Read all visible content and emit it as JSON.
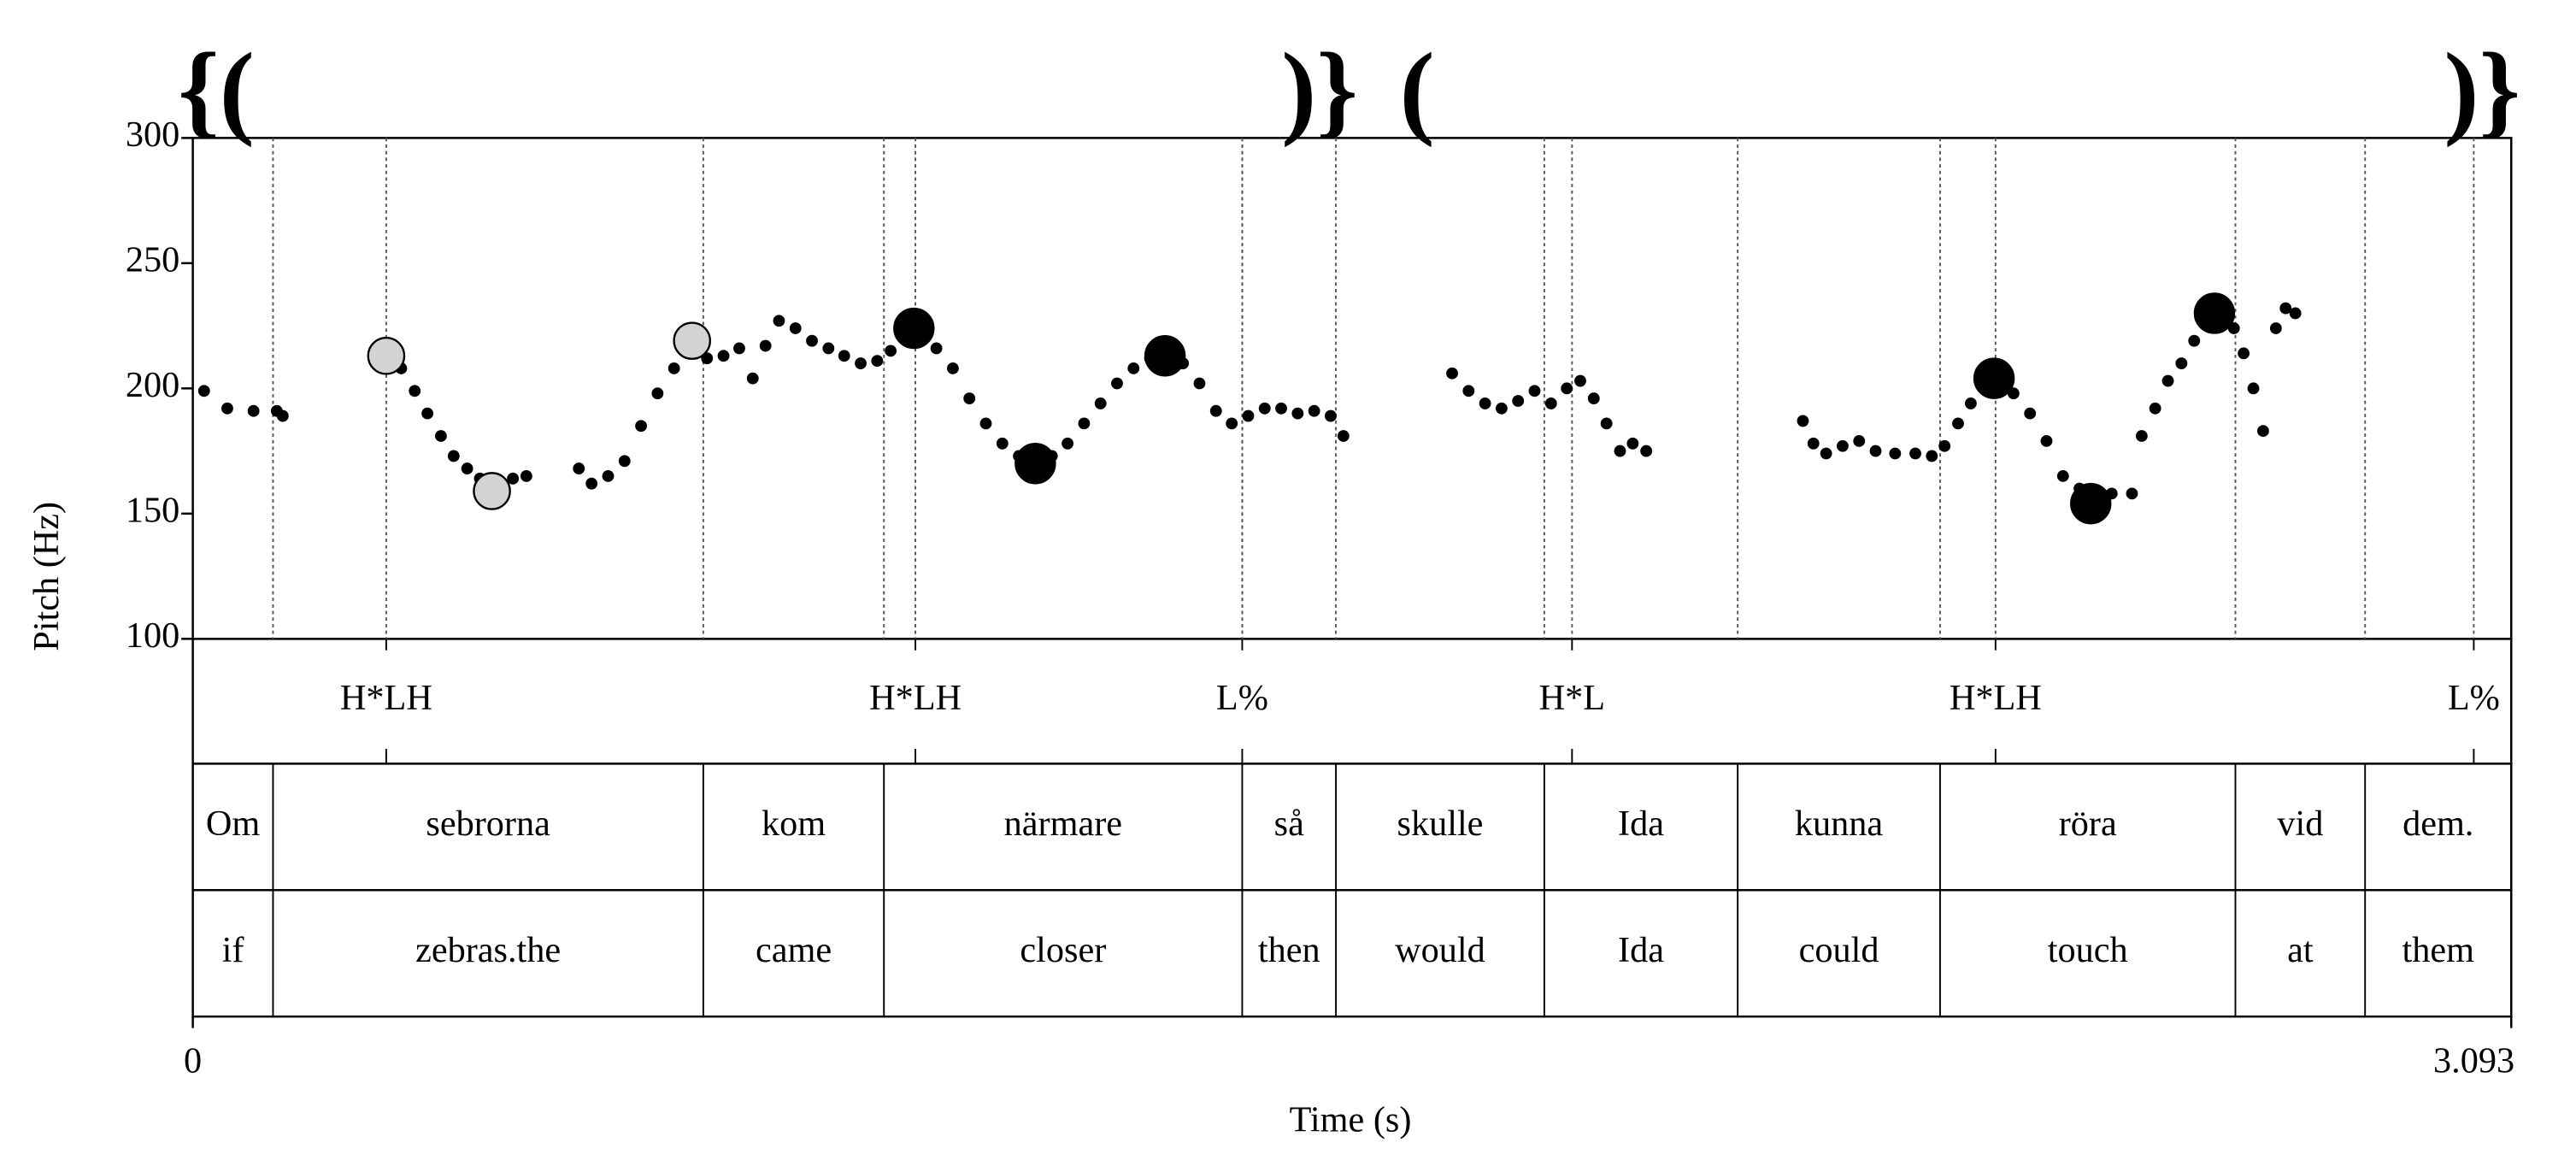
{
  "chart_data": {
    "type": "scatter",
    "x_label": "Time (s)",
    "y_label": "Pitch (Hz)",
    "xlim": [
      0,
      3.093
    ],
    "xticks": [
      0,
      3.093
    ],
    "ylim": [
      100,
      300
    ],
    "yticks": [
      100,
      150,
      200,
      250,
      300
    ],
    "brackets": [
      "{(",
      ")}",
      "(",
      ")}"
    ],
    "series": [
      {
        "color": "#000000",
        "marker_size": 3.6,
        "x": [
          0.015,
          0.046,
          0.081,
          0.112,
          0.12,
          0.278,
          0.296,
          0.313,
          0.331,
          0.348,
          0.366,
          0.383,
          0.401,
          0.427,
          0.445,
          0.515,
          0.532,
          0.554,
          0.576,
          0.598,
          0.62,
          0.642,
          0.664,
          0.686,
          0.708,
          0.729,
          0.747,
          0.764,
          0.782,
          0.804,
          0.826,
          0.848,
          0.869,
          0.891,
          0.913,
          0.931,
          0.948,
          0.97,
          0.992,
          1.014,
          1.036,
          1.058,
          1.08,
          1.102,
          1.124,
          1.146,
          1.167,
          1.189,
          1.211,
          1.233,
          1.255,
          1.277,
          1.299,
          1.321,
          1.343,
          1.365,
          1.386,
          1.408,
          1.43,
          1.452,
          1.474,
          1.496,
          1.518,
          1.535,
          1.68,
          1.702,
          1.724,
          1.746,
          1.768,
          1.79,
          1.812,
          1.833,
          1.851,
          1.869,
          1.886,
          1.904,
          1.921,
          1.939,
          2.148,
          2.162,
          2.179,
          2.201,
          2.223,
          2.245,
          2.271,
          2.298,
          2.32,
          2.337,
          2.355,
          2.372,
          2.39,
          2.407,
          2.429,
          2.451,
          2.473,
          2.495,
          2.517,
          2.539,
          2.56,
          2.587,
          2.6,
          2.618,
          2.635,
          2.653,
          2.67,
          2.688,
          2.705,
          2.723,
          2.736,
          2.749,
          2.762,
          2.779,
          2.792,
          2.805
        ],
        "values": [
          199,
          192,
          191,
          191,
          189,
          208,
          199,
          190,
          181,
          173,
          168,
          164,
          161,
          164,
          165,
          168,
          162,
          165,
          171,
          185,
          198,
          208,
          216,
          212,
          213,
          216,
          204,
          217,
          227,
          224,
          219,
          216,
          213,
          210,
          211,
          215,
          224,
          222,
          216,
          208,
          196,
          186,
          178,
          173,
          170,
          173,
          178,
          186,
          194,
          202,
          208,
          212,
          215,
          210,
          202,
          191,
          186,
          189,
          192,
          192,
          190,
          191,
          189,
          181,
          206,
          199,
          194,
          192,
          195,
          199,
          194,
          200,
          203,
          196,
          186,
          175,
          178,
          175,
          187,
          178,
          174,
          177,
          179,
          175,
          174,
          174,
          173,
          177,
          186,
          194,
          202,
          204,
          198,
          190,
          179,
          165,
          160,
          157,
          158,
          158,
          181,
          192,
          203,
          210,
          219,
          227,
          232,
          224,
          214,
          200,
          183,
          224,
          232,
          230
        ]
      },
      {
        "color": "#d3d3d3",
        "marker_size": 11,
        "x": [
          0.258,
          0.399,
          0.666
        ],
        "values": [
          213,
          159,
          219
        ]
      },
      {
        "color": "#000000",
        "marker_size": 12,
        "x": [
          0.962,
          1.124,
          1.297,
          2.403,
          2.532,
          2.697
        ],
        "values": [
          224,
          170,
          213,
          204,
          154,
          230
        ]
      }
    ],
    "tiers": [
      {
        "type": "point",
        "points": [
          0.258,
          0.964,
          1.4,
          1.84,
          2.405,
          3.043
        ],
        "labels": [
          "H*LH",
          "H*LH",
          "L%",
          "H*L",
          "H*LH",
          "L%"
        ]
      },
      {
        "type": "interval",
        "boundaries": [
          0,
          0.107,
          0.681,
          0.922,
          1.4,
          1.525,
          1.803,
          2.061,
          2.331,
          2.725,
          2.898,
          3.093
        ],
        "labels": [
          "Om",
          "sebrorna",
          "kom",
          "närmare",
          "så",
          "skulle",
          "Ida",
          "kunna",
          "röra",
          "vid",
          "dem."
        ]
      },
      {
        "type": "interval",
        "boundaries": [
          0,
          0.107,
          0.681,
          0.922,
          1.4,
          1.525,
          1.803,
          2.061,
          2.331,
          2.725,
          2.898,
          3.093
        ],
        "labels": [
          "if",
          "zebras.the",
          "came",
          "closer",
          "then",
          "would",
          "Ida",
          "could",
          "touch",
          "at",
          "them"
        ]
      }
    ]
  }
}
